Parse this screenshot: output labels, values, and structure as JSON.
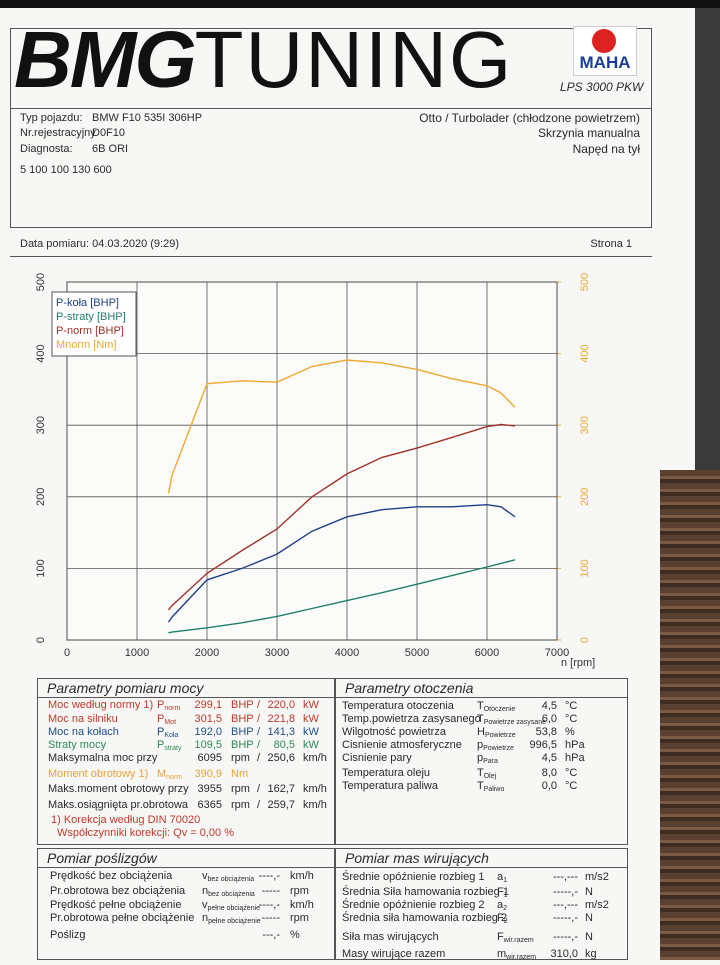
{
  "header": {
    "logo_bold": "BMG",
    "logo_light": "TUNING",
    "maha": "MAHA",
    "model": "LPS 3000 PKW"
  },
  "vehicle": {
    "rows": [
      [
        "Typ pojazdu:",
        "BMW F10 535I 306HP"
      ],
      [
        "Nr.rejestracyjny",
        "D0F10"
      ],
      [
        "Diagnosta:",
        "6B ORI"
      ]
    ],
    "engine": [
      "Otto / Turbolader (chłodzone powietrzem)",
      "Skrzynia manualna",
      "Napęd na tył"
    ],
    "code": "5 100 100 130 600"
  },
  "measurement": {
    "date": "Data pomiaru: 04.03.2020 (9:29)",
    "page": "Strona 1"
  },
  "chart_data": {
    "type": "line",
    "x_label": "n [rpm]",
    "x": [
      1450,
      1500,
      2000,
      2500,
      3000,
      3500,
      4000,
      4500,
      5000,
      5500,
      6000,
      6200,
      6400
    ],
    "series": [
      {
        "name": "P-koła [BHP]",
        "color": "#1f3f8a",
        "values": [
          25,
          32,
          84,
          100,
          120,
          152,
          172,
          182,
          186,
          186,
          189,
          186,
          172
        ]
      },
      {
        "name": "P-straty [BHP]",
        "color": "#1e7f6a",
        "values": [
          10,
          11,
          17,
          24,
          33,
          44,
          55,
          66,
          78,
          90,
          102,
          107,
          112
        ]
      },
      {
        "name": "P-norm [BHP]",
        "color": "#a0322a",
        "values": [
          42,
          48,
          93,
          125,
          155,
          200,
          232,
          255,
          268,
          283,
          298,
          301,
          299
        ]
      },
      {
        "name": "Mnorm [Nm]",
        "color": "#f0a830",
        "axis": "y2",
        "values": [
          205,
          230,
          358,
          362,
          360,
          382,
          391,
          387,
          378,
          365,
          355,
          345,
          325
        ]
      }
    ],
    "xlim": [
      0,
      7000
    ],
    "xticks": [
      0,
      1000,
      2000,
      3000,
      4000,
      5000,
      6000,
      7000
    ],
    "ylim": [
      0,
      500
    ],
    "yticks": [
      0,
      100,
      200,
      300,
      400,
      500
    ],
    "y2lim": [
      0,
      500
    ],
    "y2ticks": [
      0,
      100,
      200,
      300,
      400,
      500
    ],
    "y2_color": "#f0a830",
    "grid": true,
    "legend": "top-left"
  },
  "power": {
    "title": "Parametry pomiaru mocy",
    "rows": [
      {
        "label": "Moc według normy 1)",
        "sym": "P",
        "sub": "norm",
        "v1": "299,1",
        "u1": "BHP",
        "sep": "/",
        "v2": "220,0",
        "u2": "kW",
        "color": "#c0392b"
      },
      {
        "label": "Moc na silniku",
        "sym": "P",
        "sub": "Mot",
        "v1": "301,5",
        "u1": "BHP",
        "sep": "/",
        "v2": "221,8",
        "u2": "kW",
        "color": "#c0392b"
      },
      {
        "label": "Moc na kołach",
        "sym": "P",
        "sub": "Koła",
        "v1": "192,0",
        "u1": "BHP",
        "sep": "/",
        "v2": "141,3",
        "u2": "kW",
        "color": "#1f4e8c"
      },
      {
        "label": "Straty mocy",
        "sym": "P",
        "sub": "straty",
        "v1": "109,5",
        "u1": "BHP",
        "sep": "/",
        "v2": "80,5",
        "u2": "kW",
        "color": "#2e8b57"
      },
      {
        "label": "Maksymalna moc przy",
        "v1": "6095",
        "u1": "rpm",
        "sep": "/",
        "v2": "250,6",
        "u2": "km/h"
      },
      {
        "label": "Moment obrotowy 1)",
        "sym": "M",
        "sub": "norm",
        "v1": "390,9",
        "u1": "Nm",
        "color": "#e8a33a"
      },
      {
        "label": "Maks.moment obrotowy przy",
        "v1": "3955",
        "u1": "rpm",
        "sep": "/",
        "v2": "162,7",
        "u2": "km/h"
      },
      {
        "label": "Maks.osiągnięta pr.obrotowa",
        "v1": "6365",
        "u1": "rpm",
        "sep": "/",
        "v2": "259,7",
        "u2": "km/h"
      }
    ],
    "notes": [
      "1) Korekcja według DIN 70020",
      "Współczynniki korekcji: Qv = 0,00 %"
    ]
  },
  "environment": {
    "title": "Parametry otoczenia",
    "rows": [
      {
        "label": "Temperatura otoczenia",
        "sym": "T",
        "sub": "Otoczenie",
        "v1": "4,5",
        "u1": "°C"
      },
      {
        "label": "Temp.powietrza zasysanego",
        "sym": "T",
        "sub": "Powietrze zasysane",
        "v1": "6,0",
        "u1": "°C"
      },
      {
        "label": "Wilgotność powietrza",
        "sym": "H",
        "sub": "Powietrze",
        "v1": "53,8",
        "u1": "%"
      },
      {
        "label": "Cisnienie atmosferyczne",
        "sym": "p",
        "sub": "Powietrze",
        "v1": "996,5",
        "u1": "hPa"
      },
      {
        "label": "Cisnienie pary",
        "sym": "p",
        "sub": "Para",
        "v1": "4,5",
        "u1": "hPa"
      },
      {
        "label": "Temperatura oleju",
        "sym": "T",
        "sub": "Olej",
        "v1": "8,0",
        "u1": "°C"
      },
      {
        "label": "Temperatura paliwa",
        "sym": "T",
        "sub": "Paliwo",
        "v1": "0,0",
        "u1": "°C"
      }
    ]
  },
  "slip": {
    "title": "Pomiar poślizgów",
    "rows": [
      {
        "label": "Prędkość bez obciążenia",
        "sym": "v",
        "sub": "bez obciążenia",
        "v1": "----,-",
        "u1": "km/h"
      },
      {
        "label": "Pr.obrotowa bez obciążenia",
        "sym": "n",
        "sub": "bez obciążenia",
        "v1": "-----",
        "u1": "rpm"
      },
      {
        "label": "Prędkość pełne obciążenie",
        "sym": "v",
        "sub": "pełne obciążenie",
        "v1": "----,-",
        "u1": "km/h"
      },
      {
        "label": "Pr.obrotowa pełne obciążenie",
        "sym": "n",
        "sub": "pełne obciążenie",
        "v1": "-----",
        "u1": "rpm"
      },
      {
        "label": "Poślizg",
        "v1": "---,-",
        "u1": "%"
      }
    ]
  },
  "masses": {
    "title": "Pomiar mas wirujących",
    "rows": [
      {
        "label": "Średnie opóźnienie rozbieg 1",
        "sym": "a",
        "sub": "1",
        "v1": "---,---",
        "u1": "m/s2"
      },
      {
        "label": "Średnia Siła hamowania rozbieg 1",
        "sym": "F",
        "sub": "1",
        "v1": "-----,-",
        "u1": "N"
      },
      {
        "label": "Średnie opóźnienie rozbieg 2",
        "sym": "a",
        "sub": "2",
        "v1": "---,---",
        "u1": "m/s2"
      },
      {
        "label": "Średnia siła hamowania rozbieg 2",
        "sym": "F",
        "sub": "2",
        "v1": "-----,-",
        "u1": "N"
      },
      {
        "label": "Siła mas wirujących",
        "sym": "F",
        "sub": "wir.razem",
        "v1": "-----,-",
        "u1": "N"
      },
      {
        "label": "Masy wirujące razem",
        "sym": "m",
        "sub": "wir.razem",
        "v1": "310,0",
        "u1": "kg"
      }
    ]
  }
}
